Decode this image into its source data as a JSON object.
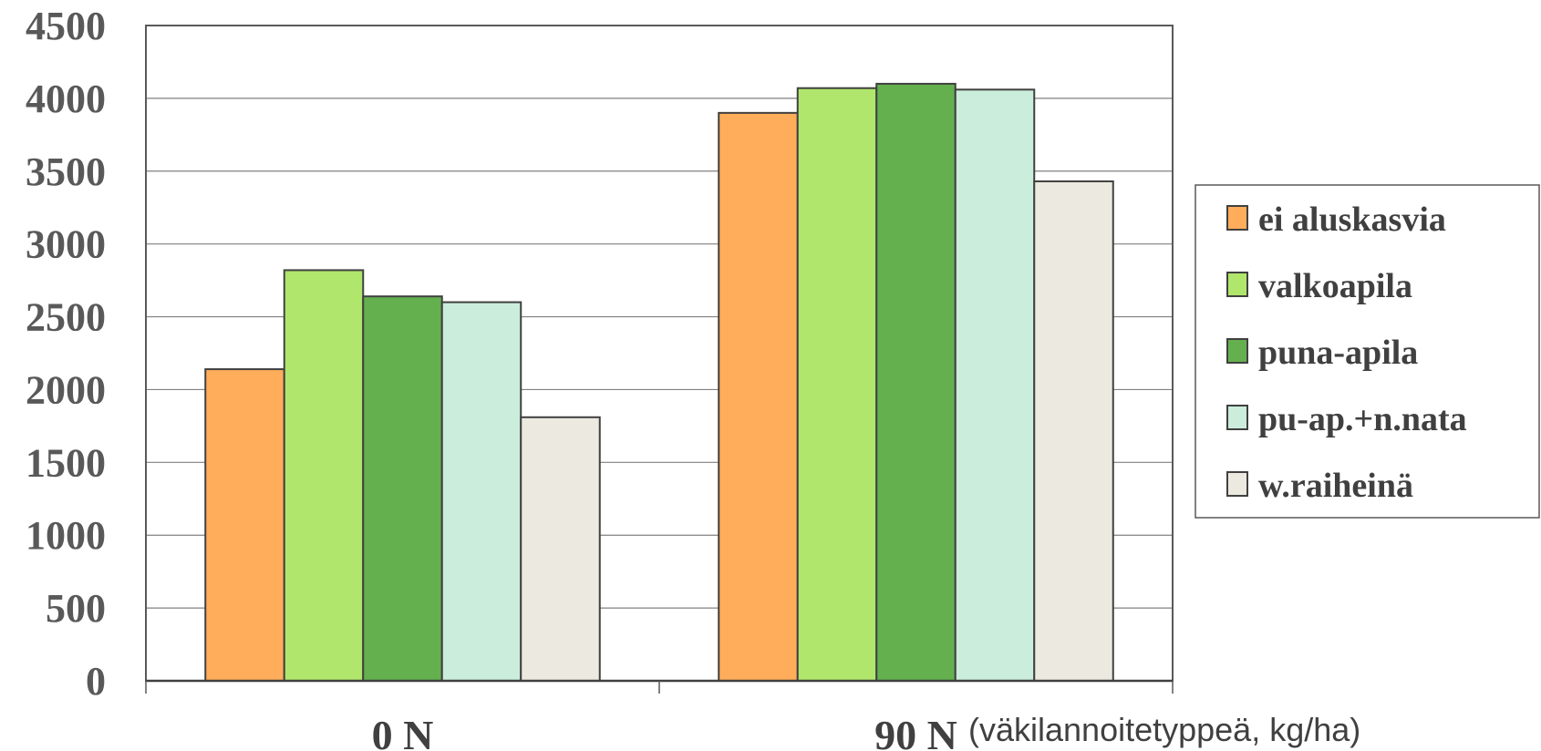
{
  "chart_data": {
    "type": "bar",
    "categories": [
      "0 N",
      "90 N"
    ],
    "xlabel": "(väkilannoitetyppeä, kg/ha)",
    "ylim": [
      0,
      4500
    ],
    "yticks": [
      0,
      500,
      1000,
      1500,
      2000,
      2500,
      3000,
      3500,
      4000,
      4500
    ],
    "grid": true,
    "legend_position": "right",
    "series": [
      {
        "name": "ei aluskasvia",
        "color": "#FFAD5B",
        "values": [
          2140,
          3900
        ]
      },
      {
        "name": "valkoapila",
        "color": "#B0E66C",
        "values": [
          2820,
          4070
        ]
      },
      {
        "name": "puna-apila",
        "color": "#64B04F",
        "values": [
          2640,
          4100
        ]
      },
      {
        "name": "pu-ap.+n.nata",
        "color": "#CBEDDC",
        "values": [
          2600,
          4060
        ]
      },
      {
        "name": "w.raiheinä",
        "color": "#ECEAE0",
        "values": [
          1810,
          3430
        ]
      }
    ]
  }
}
